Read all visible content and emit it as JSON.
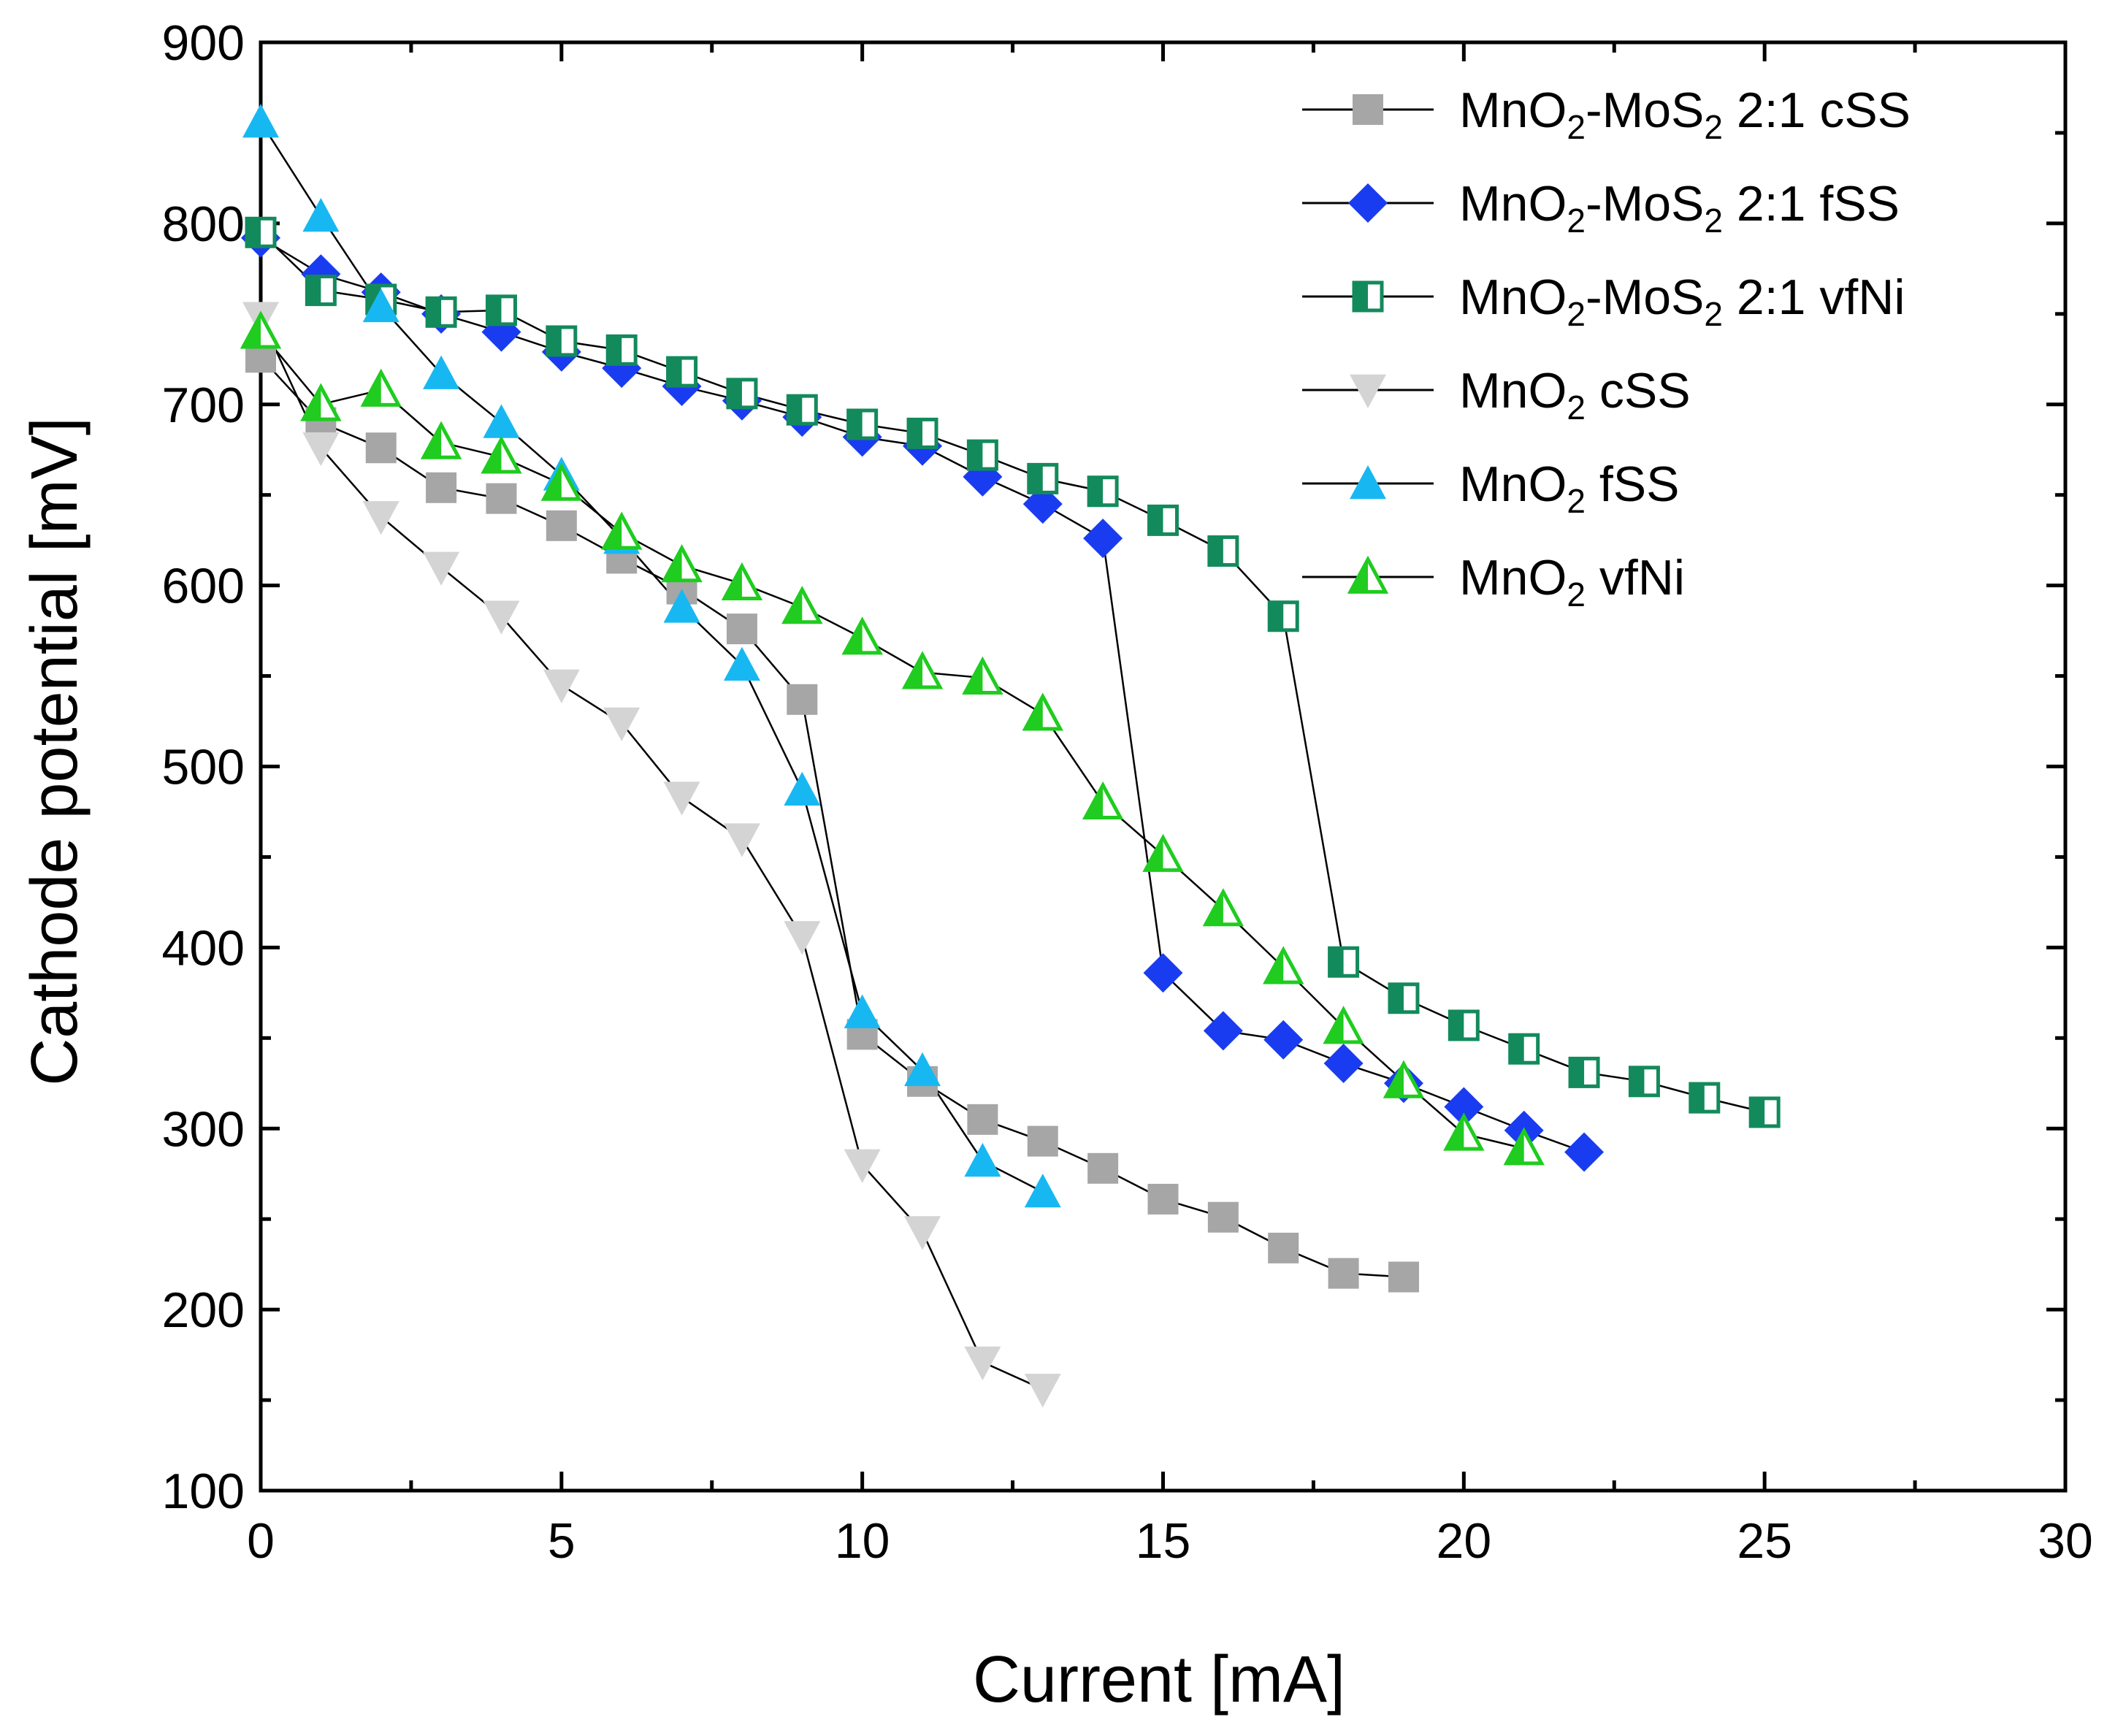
{
  "chart_data": {
    "type": "line",
    "title": "",
    "xlabel": "Current [mA]",
    "ylabel": "Cathode potential [mV]",
    "xlim": [
      0,
      30
    ],
    "ylim": [
      100,
      900
    ],
    "xticks": [
      0,
      5,
      10,
      15,
      20,
      25,
      30
    ],
    "yticks": [
      100,
      200,
      300,
      400,
      500,
      600,
      700,
      800,
      900
    ],
    "grid": false,
    "legend_position": "top-right",
    "series": [
      {
        "name": "MnO2-MoS2 2:1 cSS",
        "legend": {
          "base": "MnO",
          "sub1": "2",
          "mid": "-MoS",
          "sub2": "2",
          "tail": " 2:1 cSS"
        },
        "marker": "square",
        "fill": "#a6a6a6",
        "stroke": "#a6a6a6",
        "x": [
          0,
          1,
          2,
          3,
          4,
          5,
          6,
          7,
          8,
          9,
          10,
          11,
          12,
          13,
          14,
          15,
          16,
          17,
          18,
          19
        ],
        "y": [
          726,
          690,
          676,
          654,
          648,
          633,
          615,
          598,
          576,
          537,
          352,
          326,
          305,
          293,
          278,
          261,
          251,
          234,
          220,
          218
        ]
      },
      {
        "name": "MnO2-MoS2 2:1 fSS",
        "legend": {
          "base": "MnO",
          "sub1": "2",
          "mid": "-MoS",
          "sub2": "2",
          "tail": " 2:1 fSS"
        },
        "marker": "diamond",
        "fill": "#1a3cf0",
        "stroke": "#1a3cf0",
        "x": [
          0,
          1,
          2,
          3,
          4,
          5,
          6,
          7,
          8,
          9,
          10,
          11,
          12,
          13,
          14,
          15,
          16,
          17,
          18,
          19,
          20,
          21,
          22
        ],
        "y": [
          792,
          772,
          762,
          750,
          740,
          729,
          720,
          710,
          702,
          693,
          682,
          677,
          660,
          645,
          626,
          386,
          354,
          349,
          336,
          325,
          312,
          299,
          287
        ]
      },
      {
        "name": "MnO2-MoS2 2:1 vfNi",
        "legend": {
          "base": "MnO",
          "sub1": "2",
          "mid": "-MoS",
          "sub2": "2",
          "tail": " 2:1 vfNi"
        },
        "marker": "square-half",
        "fill": "#138a5c",
        "stroke": "#138a5c",
        "x": [
          0,
          1,
          2,
          3,
          4,
          5,
          6,
          7,
          8,
          9,
          10,
          11,
          12,
          13,
          14,
          15,
          16,
          17,
          18,
          19,
          20,
          21,
          22,
          23,
          24,
          25
        ],
        "y": [
          795,
          763,
          758,
          751,
          752,
          735,
          730,
          718,
          706,
          697,
          689,
          684,
          672,
          659,
          652,
          636,
          619,
          583,
          392,
          372,
          357,
          344,
          331,
          326,
          317,
          309
        ]
      },
      {
        "name": "MnO2 cSS",
        "legend": {
          "base": "MnO",
          "sub1": "2",
          "mid": "",
          "sub2": "",
          "tail": " cSS"
        },
        "marker": "triangle-down",
        "fill": "#d4d4d4",
        "stroke": "#d4d4d4",
        "x": [
          0,
          1,
          2,
          3,
          4,
          5,
          6,
          7,
          8,
          9,
          10,
          11,
          12,
          13
        ],
        "y": [
          748,
          676,
          638,
          610,
          583,
          545,
          524,
          483,
          460,
          406,
          280,
          243,
          171,
          156
        ]
      },
      {
        "name": "MnO2 fSS",
        "legend": {
          "base": "MnO",
          "sub1": "2",
          "mid": "",
          "sub2": "",
          "tail": " fSS"
        },
        "marker": "triangle-up",
        "fill": "#17b8f2",
        "stroke": "#17b8f2",
        "x": [
          0,
          1,
          2,
          3,
          4,
          5,
          6,
          7,
          8,
          9,
          10,
          11,
          12,
          13
        ],
        "y": [
          856,
          804,
          754,
          717,
          690,
          661,
          626,
          588,
          556,
          487,
          364,
          332,
          282,
          265
        ]
      },
      {
        "name": "MnO2 vfNi",
        "legend": {
          "base": "MnO",
          "sub1": "2",
          "mid": "",
          "sub2": "",
          "tail": " vfNi"
        },
        "marker": "triangle-half",
        "fill": "#1fcc1f",
        "stroke": "#1fcc1f",
        "x": [
          0,
          1,
          2,
          3,
          4,
          5,
          6,
          7,
          8,
          9,
          10,
          11,
          12,
          13,
          14,
          15,
          16,
          17,
          18,
          19,
          20,
          21
        ],
        "y": [
          740,
          700,
          708,
          679,
          671,
          656,
          629,
          611,
          601,
          588,
          571,
          552,
          549,
          529,
          480,
          451,
          421,
          389,
          356,
          326,
          297,
          289
        ]
      }
    ]
  }
}
